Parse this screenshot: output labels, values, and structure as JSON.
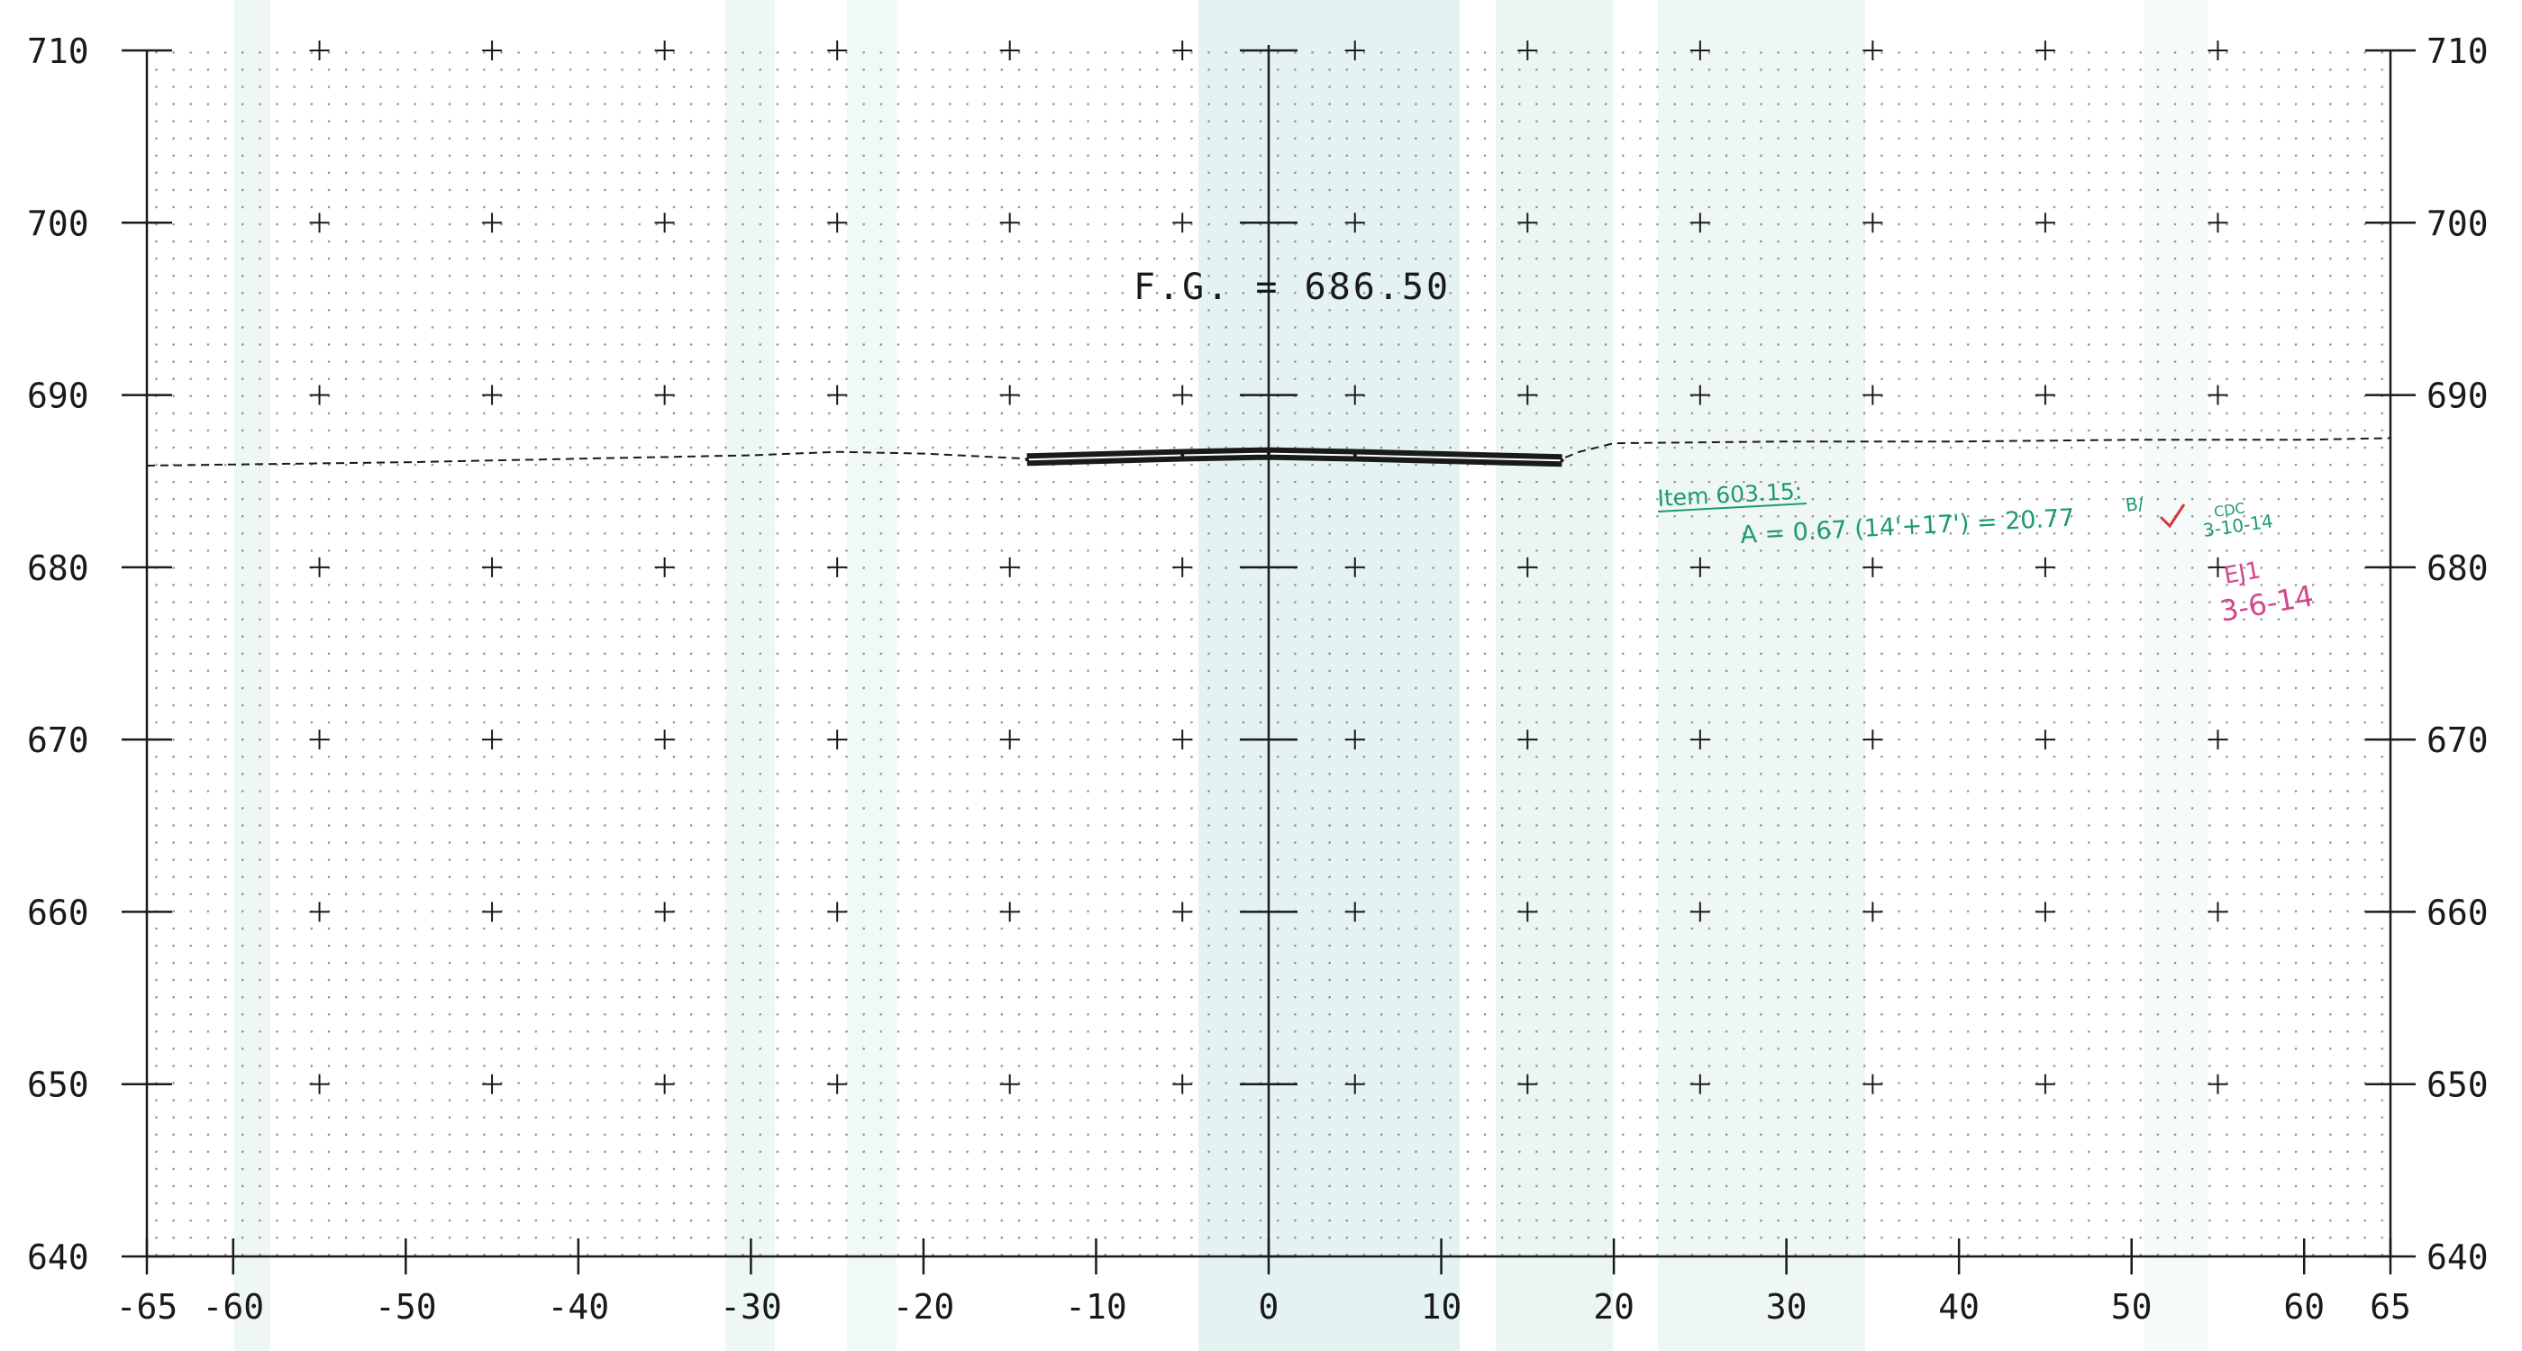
{
  "chart_data": {
    "type": "line",
    "title": "",
    "xlabel": "",
    "ylabel": "",
    "xlim": [
      -65,
      65
    ],
    "ylim": [
      640,
      710
    ],
    "x_ticks": [
      -65,
      -60,
      -50,
      -40,
      -30,
      -20,
      -10,
      0,
      10,
      20,
      30,
      40,
      50,
      60,
      65
    ],
    "x_tick_labels": [
      "-65",
      "-60",
      "-50",
      "-40",
      "-30",
      "-20",
      "-10",
      "0",
      "10",
      "20",
      "30",
      "40",
      "50",
      "60",
      "65"
    ],
    "y_ticks": [
      640,
      650,
      660,
      670,
      680,
      690,
      700,
      710
    ],
    "y_tick_labels": [
      "640",
      "650",
      "660",
      "670",
      "680",
      "690",
      "700",
      "710"
    ],
    "grid": true,
    "series": [
      {
        "style": "dashed",
        "x": [
          -65,
          -50,
          -40,
          -30,
          -25,
          -20,
          -14,
          -10,
          0,
          10,
          17,
          18,
          20,
          30,
          40,
          50,
          60,
          65
        ],
        "y": [
          685.9,
          686.1,
          686.3,
          686.5,
          686.7,
          686.6,
          686.3,
          686.4,
          686.7,
          686.4,
          686.3,
          686.7,
          687.2,
          687.3,
          687.3,
          687.4,
          687.4,
          687.5
        ]
      },
      {
        "style": "bold",
        "x": [
          -14,
          -5,
          0,
          5,
          17
        ],
        "y": [
          686.25,
          686.5,
          686.6,
          686.5,
          686.2
        ]
      }
    ],
    "annotations": [
      {
        "text": "F.G. = 686.50",
        "x": -8,
        "y": 696
      },
      {
        "text": "Item 603.15:",
        "x": 23,
        "y": 683.3
      },
      {
        "text": "A = 0.67 (14'+17') = 20.77",
        "x": 27.5,
        "y": 681.3
      },
      {
        "text": "B/",
        "x": 50,
        "y": 683.3
      },
      {
        "text": "CDC",
        "x": 55,
        "y": 683.1
      },
      {
        "text": "3-10-14",
        "x": 54.5,
        "y": 682.0
      },
      {
        "text": "EJ1",
        "x": 55.5,
        "y": 679.2
      },
      {
        "text": "3-6-14",
        "x": 55,
        "y": 677.3
      }
    ]
  },
  "colors": {
    "ink": "#1a1a1a",
    "grid_dots": "#6d6d6d",
    "scan_tint": "#9ed0cf",
    "green_note": "#1f9a6a",
    "pink_note": "#d2478c",
    "red_check": "#d23a3a"
  }
}
